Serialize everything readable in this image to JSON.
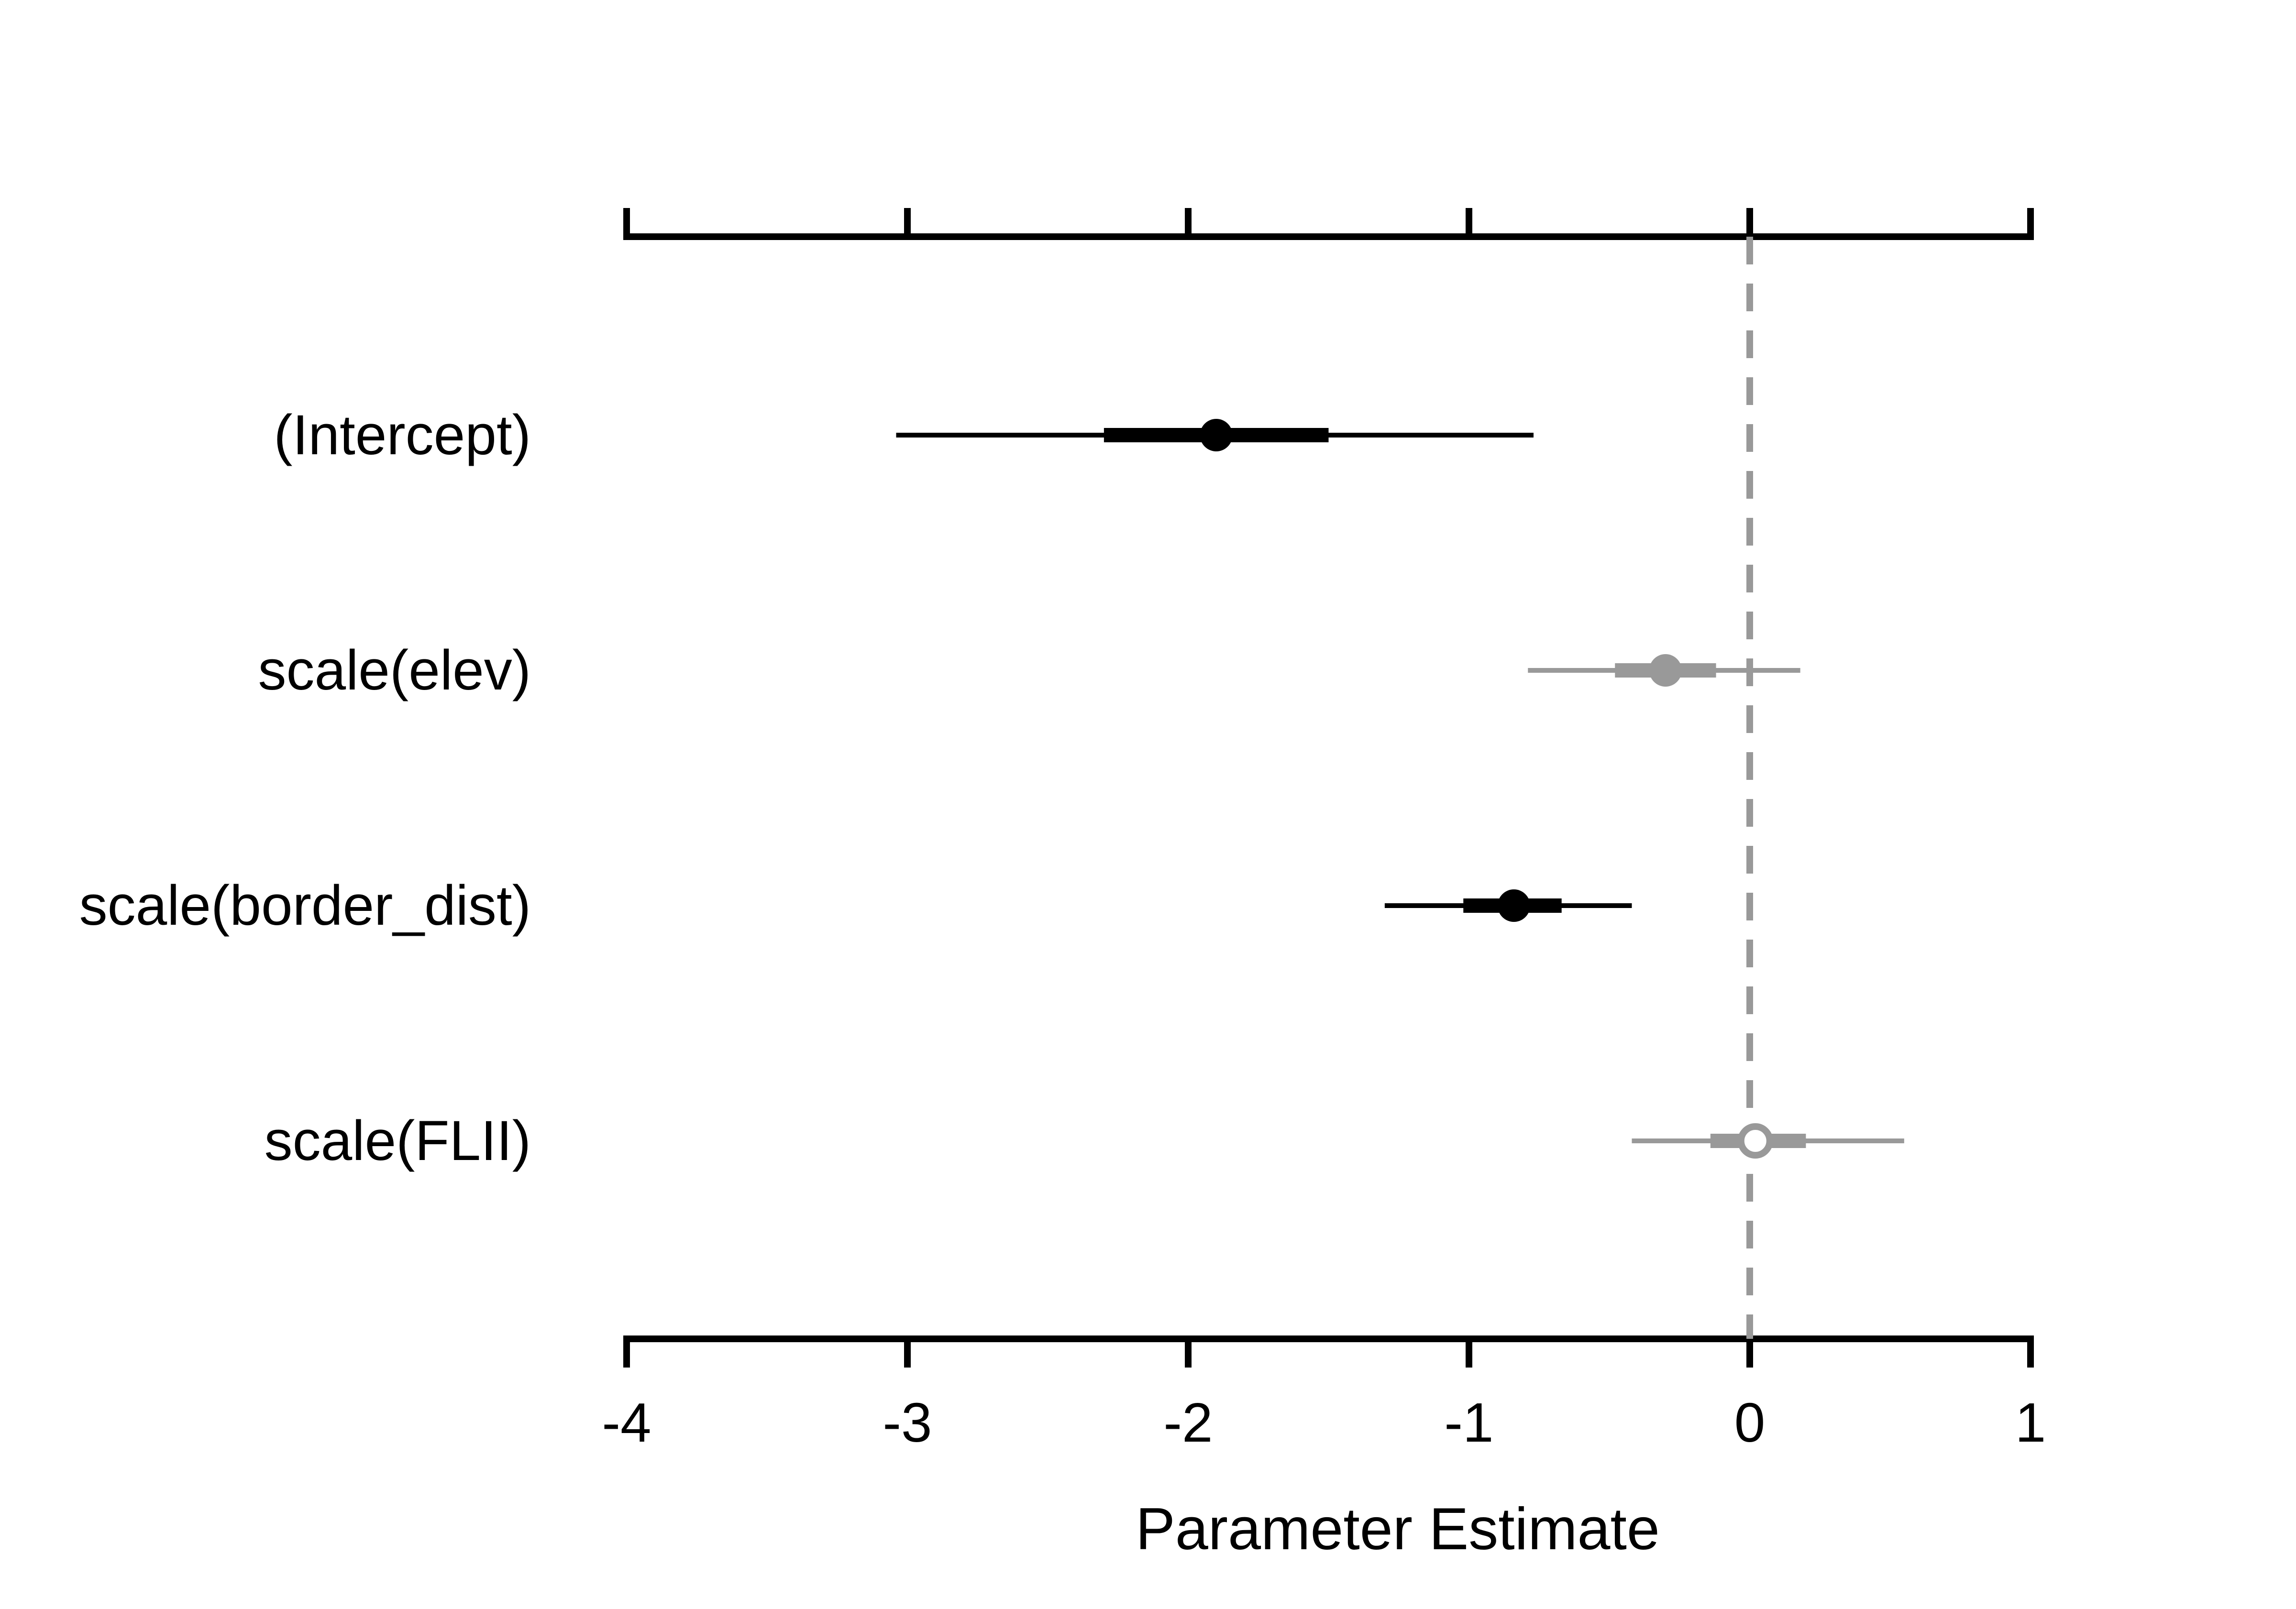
{
  "chart_data": {
    "type": "forest",
    "xlabel": "Parameter Estimate",
    "xlim": [
      -4,
      1
    ],
    "xticks": [
      -4,
      -3,
      -2,
      -1,
      0,
      1
    ],
    "xtick_labels": [
      "-4",
      "-3",
      "-2",
      "-1",
      "0",
      "1"
    ],
    "reference_line": {
      "x": 0,
      "style": "dashed",
      "color": "#999999"
    },
    "grid": false,
    "legend": null,
    "colors": {
      "significant": "#000000",
      "non_significant": "#999999",
      "axis": "#000000",
      "open_marker_fill": "#ffffff"
    },
    "parameters": [
      {
        "name": "(Intercept)",
        "estimate": -1.9,
        "ci_inner": [
          -2.3,
          -1.5
        ],
        "ci_outer": [
          -3.04,
          -0.77
        ],
        "significant": true,
        "marker": "filled"
      },
      {
        "name": "scale(elev)",
        "estimate": -0.3,
        "ci_inner": [
          -0.48,
          -0.12
        ],
        "ci_outer": [
          -0.79,
          0.18
        ],
        "significant": false,
        "marker": "filled"
      },
      {
        "name": "scale(border_dist)",
        "estimate": -0.84,
        "ci_inner": [
          -1.02,
          -0.67
        ],
        "ci_outer": [
          -1.3,
          -0.42
        ],
        "significant": true,
        "marker": "filled"
      },
      {
        "name": "scale(FLII)",
        "estimate": 0.02,
        "ci_inner": [
          -0.14,
          0.2
        ],
        "ci_outer": [
          -0.42,
          0.55
        ],
        "significant": false,
        "marker": "open"
      }
    ]
  }
}
